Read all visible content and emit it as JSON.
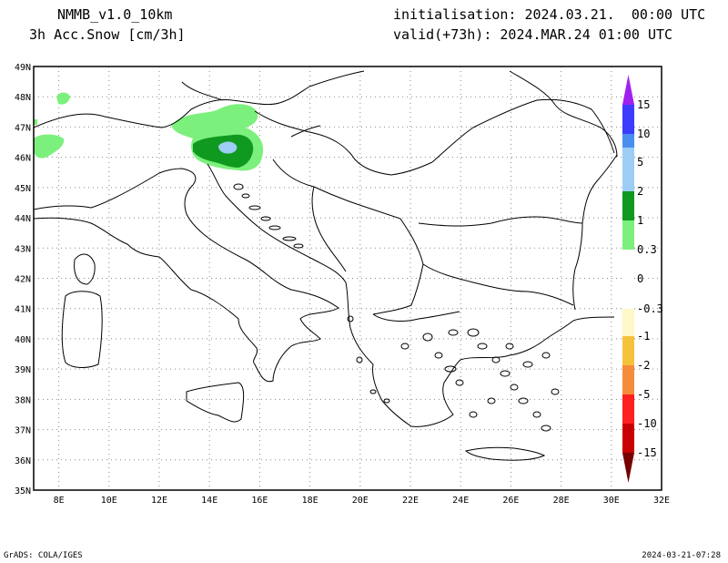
{
  "header": {
    "model": "NMMB_v1.0_10km",
    "field": "3h Acc.Snow [cm/3h]",
    "initialisation": "initialisation: 2024.03.21.  00:00 UTC",
    "valid": "valid(+73h): 2024.MAR.24 01:00 UTC"
  },
  "footer": {
    "credit": "GrADS: COLA/IGES",
    "timestamp": "2024-03-21-07:28"
  },
  "map": {
    "lon_range": [
      7,
      32
    ],
    "lat_range": [
      35,
      49
    ],
    "lon_labels": [
      "8E",
      "10E",
      "12E",
      "14E",
      "16E",
      "18E",
      "20E",
      "22E",
      "24E",
      "26E",
      "28E",
      "30E",
      "32E"
    ],
    "lat_labels": [
      "35N",
      "36N",
      "37N",
      "38N",
      "39N",
      "40N",
      "41N",
      "42N",
      "43N",
      "44N",
      "45N",
      "46N",
      "47N",
      "48N",
      "49N"
    ]
  },
  "legend": {
    "levels": [
      "15",
      "10",
      "5",
      "2",
      "1",
      "0.3",
      "0",
      "-0.3",
      "-1",
      "-2",
      "-5",
      "-10",
      "-15"
    ],
    "colors": {
      "top_arrow": "#a020f0",
      "c15": "#3c3cff",
      "c10": "#4a8ff0",
      "c5": "#9ccdf5",
      "c2": "#0f9a1f",
      "c1": "#7cf07c",
      "c0": "#ffffff",
      "cn03": "#fff8c8",
      "cn1": "#f5c23c",
      "cn2": "#f58c3c",
      "cn5": "#ff2020",
      "cn10": "#c80000",
      "bottom_arrow": "#780000"
    }
  },
  "snow_colors": {
    "light": "#7cf07c",
    "medium": "#0f9a1f",
    "heavy": "#9ccdf5"
  }
}
